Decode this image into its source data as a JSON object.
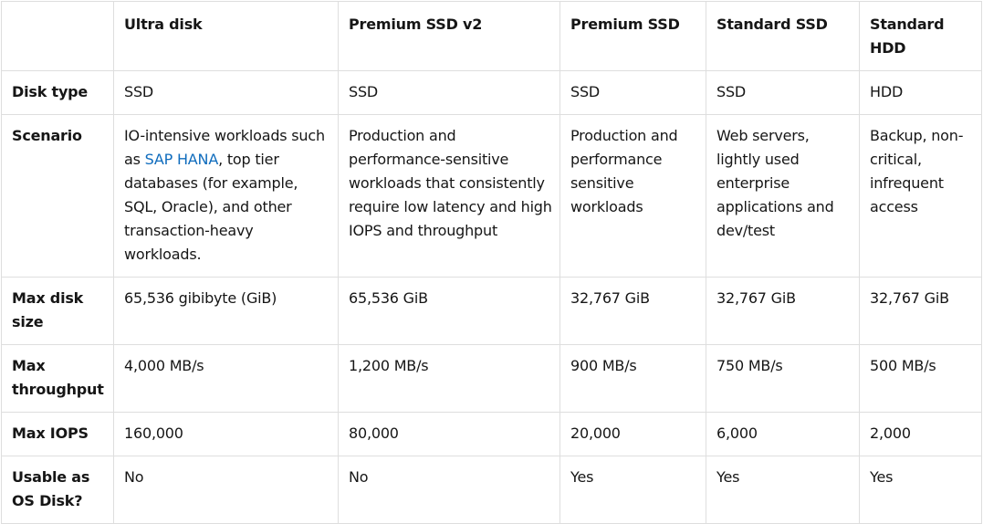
{
  "columns": [
    "",
    "Ultra disk",
    "Premium SSD v2",
    "Premium SSD",
    "Standard SSD",
    "Standard HDD"
  ],
  "rows": {
    "disk_type": {
      "label": "Disk type",
      "values": [
        "SSD",
        "SSD",
        "SSD",
        "SSD",
        "HDD"
      ]
    },
    "scenario": {
      "label": "Scenario",
      "ultra_prefix": "IO-intensive workloads such as ",
      "ultra_link": "SAP HANA",
      "ultra_suffix": ", top tier databases (for example, SQL, Oracle), and other transaction-heavy workloads.",
      "values": [
        "Production and performance-sensitive workloads that consistently require low latency and high IOPS and throughput",
        "Production and performance sensitive workloads",
        "Web servers, lightly used enterprise applications and dev/test",
        "Backup, non-critical, infrequent access"
      ]
    },
    "max_disk_size": {
      "label": "Max disk size",
      "values": [
        "65,536 gibibyte (GiB)",
        "65,536 GiB",
        "32,767 GiB",
        "32,767 GiB",
        "32,767 GiB"
      ]
    },
    "max_throughput": {
      "label": "Max throughput",
      "values": [
        "4,000 MB/s",
        "1,200 MB/s",
        "900 MB/s",
        "750 MB/s",
        "500 MB/s"
      ]
    },
    "max_iops": {
      "label": "Max IOPS",
      "values": [
        "160,000",
        "80,000",
        "20,000",
        "6,000",
        "2,000"
      ]
    },
    "usable_as_os_disk": {
      "label": "Usable as OS Disk?",
      "values": [
        "No",
        "No",
        "Yes",
        "Yes",
        "Yes"
      ]
    }
  }
}
